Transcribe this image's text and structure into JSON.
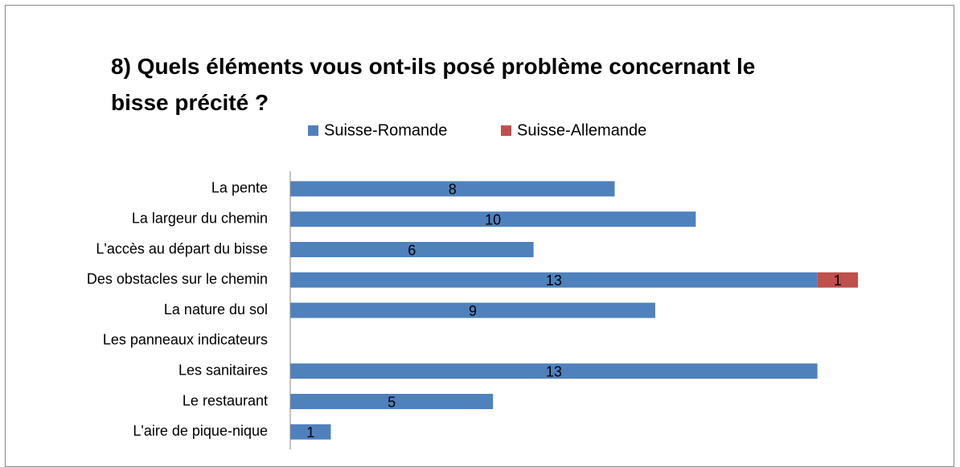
{
  "chart_data": {
    "type": "bar",
    "orientation": "horizontal",
    "stacked": true,
    "title": "8) Quels éléments vous ont-ils posé problème concernant le bisse précité ?",
    "categories": [
      "La pente",
      "La largeur du chemin",
      "L'accès au départ du bisse",
      "Des obstacles sur le chemin",
      "La nature du sol",
      "Les panneaux indicateurs",
      "Les sanitaires",
      "Le restaurant",
      "L'aire de pique-nique"
    ],
    "series": [
      {
        "name": "Suisse-Romande",
        "color": "#4f81bd",
        "values": [
          8,
          10,
          6,
          13,
          9,
          null,
          13,
          5,
          1
        ]
      },
      {
        "name": "Suisse-Allemande",
        "color": "#c0504d",
        "values": [
          null,
          null,
          null,
          1,
          null,
          null,
          null,
          null,
          null
        ]
      }
    ],
    "xlim": [
      0,
      16
    ],
    "legend": "top"
  }
}
